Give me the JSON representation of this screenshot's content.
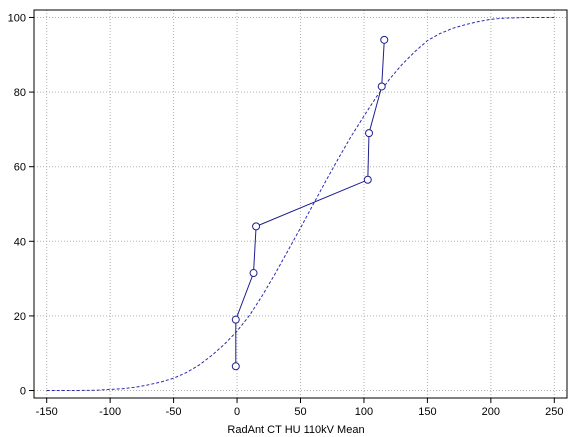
{
  "chart_data": {
    "type": "scatter",
    "title": "",
    "xlabel": "RadAnt  CT  HU  110kV  Mean",
    "ylabel": "",
    "xlim": [
      -160,
      260
    ],
    "ylim": [
      -2,
      102
    ],
    "xticks": [
      -150,
      -100,
      -50,
      0,
      50,
      100,
      150,
      200,
      250
    ],
    "yticks": [
      0,
      20,
      40,
      60,
      80,
      100
    ],
    "grid": true,
    "legend": "none",
    "colors": {
      "series": "#1f1f8f",
      "fit": "#2b2bb0",
      "grid": "#b0b0b0",
      "axis": "#000000"
    },
    "series": [
      {
        "style": "line-markers",
        "x": [
          -1,
          -1,
          13,
          15,
          103,
          104,
          114,
          116
        ],
        "y": [
          6.5,
          19,
          31.5,
          44,
          56.5,
          69,
          81.5,
          94
        ]
      },
      {
        "style": "dashed-curve",
        "x": [
          -150,
          -140,
          -130,
          -120,
          -110,
          -100,
          -90,
          -80,
          -70,
          -60,
          -50,
          -40,
          -30,
          -20,
          -10,
          0,
          10,
          20,
          30,
          40,
          50,
          60,
          70,
          80,
          90,
          100,
          110,
          120,
          130,
          140,
          150,
          160,
          170,
          180,
          190,
          200,
          210,
          220,
          230,
          240,
          250
        ],
        "y": [
          0,
          0,
          0.02,
          0.05,
          0.1,
          0.3,
          0.5,
          0.9,
          1.5,
          2.3,
          3.3,
          4.8,
          6.8,
          9.4,
          12.4,
          15.9,
          20.2,
          25.5,
          31.3,
          37.4,
          43.6,
          49.9,
          56.2,
          62.3,
          68.2,
          73.6,
          78.8,
          83.4,
          87.4,
          90.8,
          93.8,
          95.7,
          97.1,
          98.1,
          98.9,
          99.5,
          99.8,
          99.9,
          100,
          100,
          100
        ]
      }
    ]
  }
}
